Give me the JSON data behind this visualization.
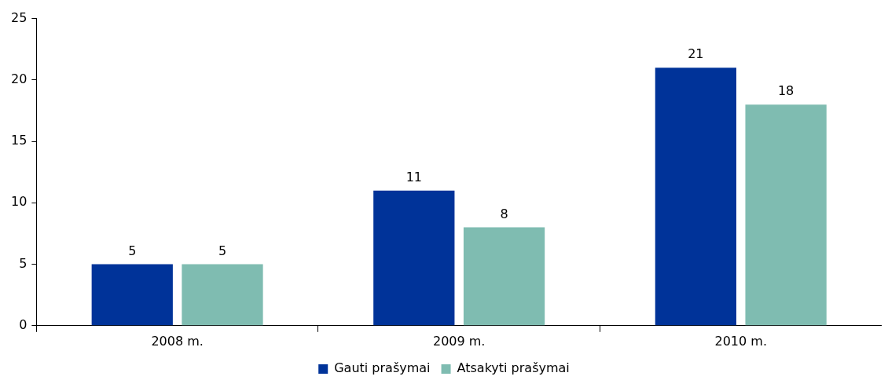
{
  "chart_data": {
    "type": "bar",
    "categories": [
      "2008 m.",
      "2009 m.",
      "2010 m."
    ],
    "series": [
      {
        "name": "Gauti prašymai",
        "color": "#003399",
        "values": [
          5,
          11,
          21
        ]
      },
      {
        "name": "Atsakyti prašymai",
        "color": "#7fbcb1",
        "values": [
          5,
          8,
          18
        ]
      }
    ],
    "ylim": [
      0,
      25
    ],
    "yticks": [
      0,
      5,
      10,
      15,
      20,
      25
    ],
    "grid": false,
    "legend": "bottom",
    "data_labels": true
  }
}
